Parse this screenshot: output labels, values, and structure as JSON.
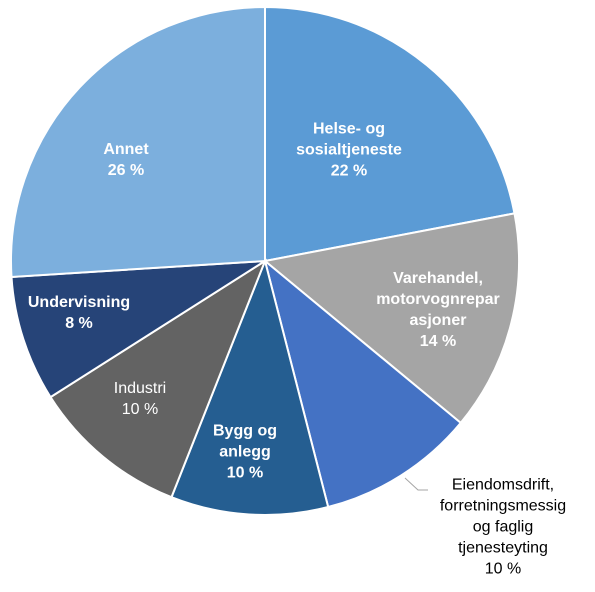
{
  "chart_data": {
    "type": "pie",
    "categories": [
      "Helse- og sosialtjeneste",
      "Varehandel, motorvognreparasjoner",
      "Eiendomsdrift, forretningsmessig og faglig tjenesteyting",
      "Bygg og anlegg",
      "Industri",
      "Undervisning",
      "Annet"
    ],
    "values": [
      22,
      14,
      10,
      10,
      10,
      8,
      26
    ],
    "value_labels": [
      "22 %",
      "14 %",
      "10 %",
      "10 %",
      "10 %",
      "8 %",
      "26 %"
    ],
    "colors": [
      "#5b9bd5",
      "#a5a5a5",
      "#4472c4",
      "#255e91",
      "#636363",
      "#264478",
      "#7cafdd"
    ]
  }
}
